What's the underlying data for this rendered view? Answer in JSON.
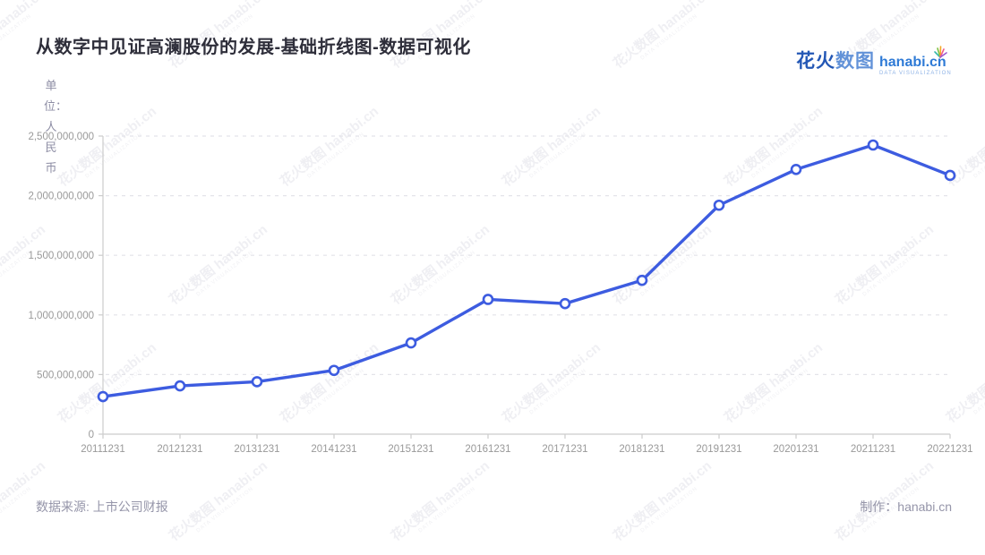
{
  "logo": {
    "brand_cn_1": "花火",
    "brand_cn_2": "数图",
    "brand_en": "hanabi.cn",
    "tagline": "DATA VISUALIZATION"
  },
  "footer": {
    "source_label": "数据来源: 上市公司财报",
    "credit_label": "制作：hanabi.cn"
  },
  "watermark": {
    "brand": "花火数图 hanabi.cn",
    "tagline": "DATA VISUALIZATION"
  },
  "chart_data": {
    "type": "line",
    "title": "从数字中见证高澜股份的发展-基础折线图-数据可视化",
    "unit_label": "单位：人民币",
    "categories": [
      "20111231",
      "20121231",
      "20131231",
      "20141231",
      "20151231",
      "20161231",
      "20171231",
      "20181231",
      "20191231",
      "20201231",
      "20211231",
      "20221231"
    ],
    "values": [
      315000000,
      405000000,
      440000000,
      535000000,
      765000000,
      1130000000,
      1095000000,
      1290000000,
      1920000000,
      2220000000,
      2425000000,
      2170000000
    ],
    "ylim": [
      0,
      2500000000
    ],
    "yticks": [
      0,
      500000000,
      1000000000,
      1500000000,
      2000000000,
      2500000000
    ],
    "grid": {
      "horizontal": true,
      "style": "dashed"
    },
    "legend": {
      "visible": false
    },
    "colors": {
      "line": "#3D5CE0",
      "marker_fill": "#FFFFFF",
      "axis": "#CCCCCC",
      "grid": "#E4E4E9",
      "tick_label": "#999999"
    }
  }
}
